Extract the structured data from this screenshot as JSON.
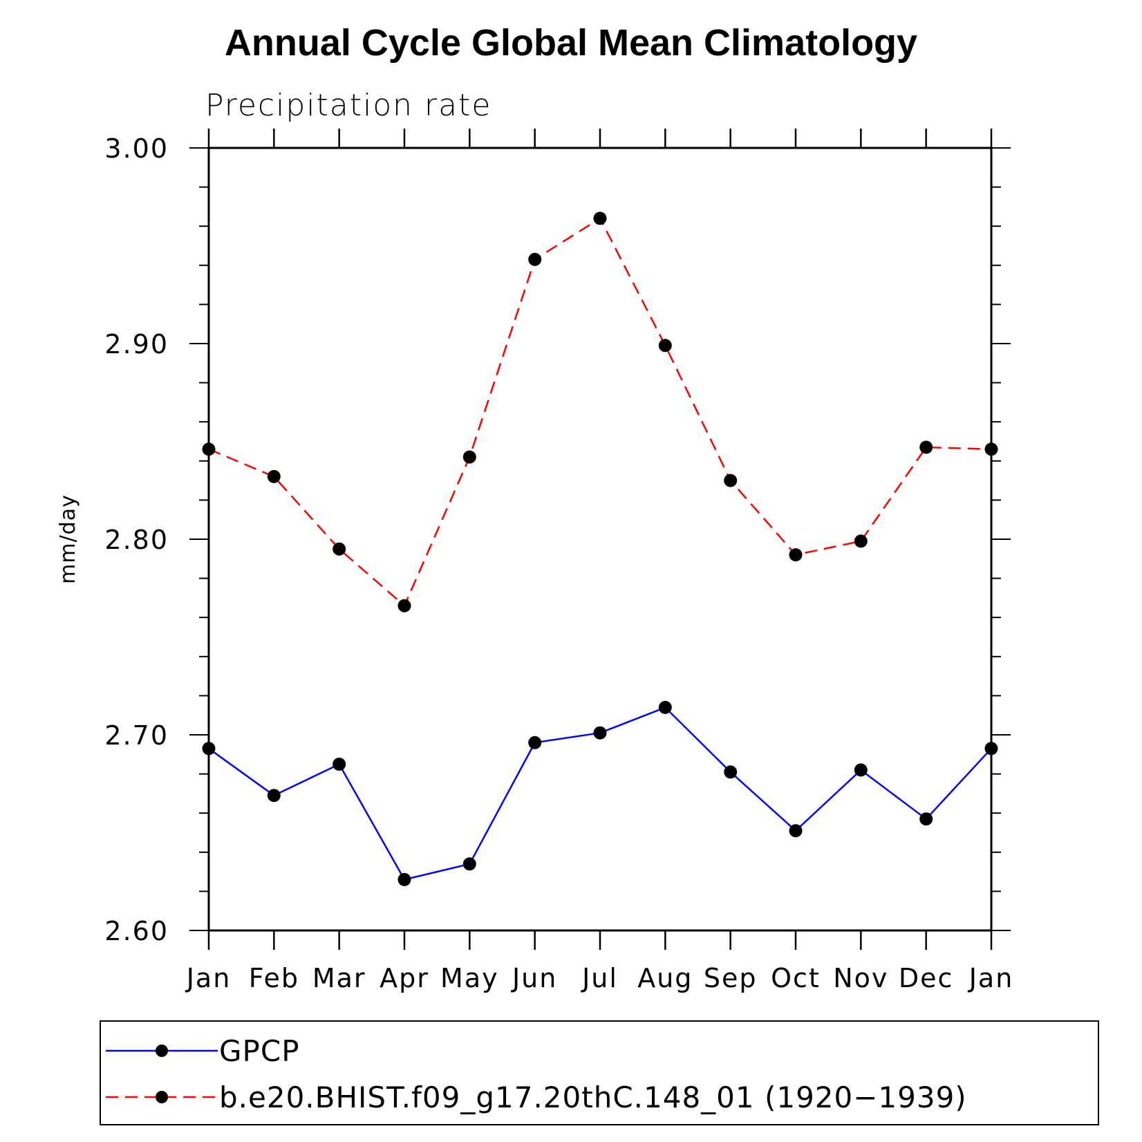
{
  "chart_data": {
    "type": "line",
    "title": "Annual Cycle Global Mean Climatology",
    "subtitle": "Precipitation rate",
    "ylabel": "mm/day",
    "xlabel": "",
    "categories": [
      "Jan",
      "Feb",
      "Mar",
      "Apr",
      "May",
      "Jun",
      "Jul",
      "Aug",
      "Sep",
      "Oct",
      "Nov",
      "Dec",
      "Jan"
    ],
    "ylim": [
      2.6,
      3.0
    ],
    "yticks": [
      "2.60",
      "2.70",
      "2.80",
      "2.90",
      "3.00"
    ],
    "grid": false,
    "legend_position": "bottom",
    "series": [
      {
        "name": "GPCP",
        "color": "#0000ff",
        "line_style": "solid",
        "marker": "filled-circle",
        "values": [
          2.693,
          2.669,
          2.685,
          2.626,
          2.634,
          2.696,
          2.701,
          2.714,
          2.681,
          2.651,
          2.682,
          2.657,
          2.693
        ]
      },
      {
        "name": "b.e20.BHIST.f09_g17.20thC.148_01 (1920−1939)",
        "color": "#ff0000",
        "line_style": "dashed",
        "marker": "filled-circle",
        "values": [
          2.846,
          2.832,
          2.795,
          2.766,
          2.842,
          2.943,
          2.964,
          2.899,
          2.83,
          2.792,
          2.799,
          2.847,
          2.846
        ]
      }
    ]
  }
}
